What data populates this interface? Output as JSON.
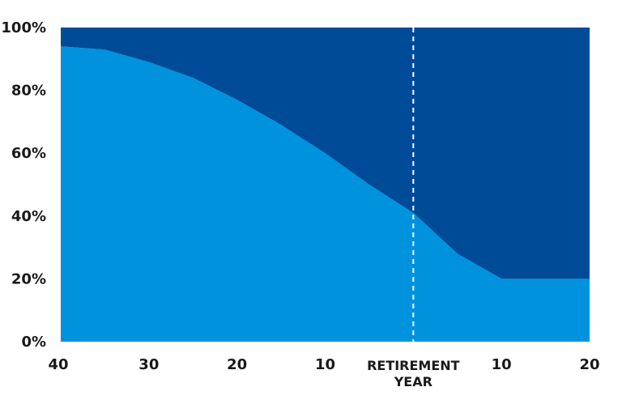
{
  "chart_data": {
    "type": "area",
    "title": "",
    "xlabel": "",
    "ylabel": "",
    "x": [
      -40,
      -35,
      -30,
      -25,
      -20,
      -15,
      -10,
      -5,
      0,
      5,
      10,
      15,
      20
    ],
    "xlim": [
      -40,
      20
    ],
    "ylim": [
      0,
      100
    ],
    "x_tick_values": [
      -40,
      -30,
      -20,
      -10,
      0,
      10,
      20
    ],
    "x_tick_labels": [
      "40",
      "30",
      "20",
      "10",
      "RETIREMENT YEAR",
      "10",
      "20"
    ],
    "y_tick_values": [
      0,
      20,
      40,
      60,
      80,
      100
    ],
    "y_tick_labels": [
      "0%",
      "20%",
      "40%",
      "60%",
      "80%",
      "100%"
    ],
    "series": [
      {
        "values": [
          94,
          93,
          89,
          84,
          77,
          69,
          60,
          50,
          41,
          28,
          20,
          20,
          20
        ],
        "color": "#0092dd"
      },
      {
        "values": [
          6,
          7,
          11,
          16,
          23,
          31,
          40,
          50,
          59,
          72,
          80,
          80,
          80
        ],
        "color": "#004b98"
      }
    ],
    "stacked": true,
    "vertical_marker": {
      "x": 0,
      "style": "dashed",
      "color": "#ffffff"
    },
    "grid": false,
    "legend": "none"
  }
}
